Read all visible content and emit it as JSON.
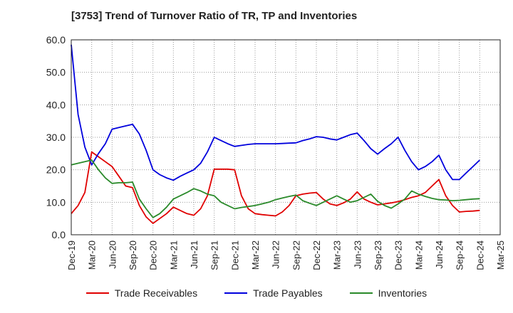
{
  "title": "[3753]  Trend of Turnover Ratio of TR, TP and Inventories",
  "chart_data": {
    "type": "line",
    "x_ticks": [
      "Dec-19",
      "Mar-20",
      "Jun-20",
      "Sep-20",
      "Dec-20",
      "Mar-21",
      "Jun-21",
      "Sep-21",
      "Dec-21",
      "Mar-22",
      "Jun-22",
      "Sep-22",
      "Dec-22",
      "Mar-23",
      "Jun-23",
      "Sep-23",
      "Dec-23",
      "Mar-24",
      "Jun-24",
      "Sep-24",
      "Dec-24",
      "Mar-25"
    ],
    "y_ticks": [
      "0.0",
      "10.0",
      "20.0",
      "30.0",
      "40.0",
      "50.0",
      "60.0"
    ],
    "ylim": [
      0,
      60
    ],
    "grid": "dotted",
    "legend_position": "bottom",
    "series": [
      {
        "name": "Trade Receivables",
        "color": "#e00000",
        "values": [
          6.5,
          9,
          13,
          25.5,
          24,
          22.5,
          21,
          18,
          15,
          14.5,
          9,
          5.5,
          3.5,
          5,
          6.5,
          8.5,
          7.5,
          6.5,
          6,
          8,
          12,
          20.2,
          20.2,
          20.2,
          20,
          12,
          8,
          6.5,
          6.2,
          6,
          5.8,
          7,
          9,
          12,
          12.5,
          12.8,
          13,
          11,
          9.5,
          9,
          9.8,
          11,
          13.2,
          11,
          10,
          9.2,
          9.5,
          9.8,
          10.2,
          10.8,
          11.5,
          12,
          13,
          15,
          17,
          12,
          9,
          7,
          7.2,
          7.3,
          7.5
        ]
      },
      {
        "name": "Trade Payables",
        "color": "#0000dd",
        "values": [
          58.5,
          37,
          27,
          21.5,
          25,
          28,
          32.5,
          33,
          33.5,
          34,
          31,
          26,
          20,
          18.5,
          17.5,
          16.8,
          18,
          19,
          20,
          22,
          25.5,
          30,
          29,
          28,
          27.2,
          27.5,
          27.8,
          28,
          28,
          28,
          28,
          28.1,
          28.2,
          28.3,
          29,
          29.5,
          30.2,
          30,
          29.5,
          29.2,
          30,
          30.8,
          31.3,
          29,
          26.5,
          24.8,
          26.5,
          28,
          30,
          26,
          22.5,
          20,
          21,
          22.5,
          24.5,
          20,
          17,
          17,
          19,
          21,
          23
        ]
      },
      {
        "name": "Inventories",
        "color": "#2a8a2a",
        "values": [
          21.5,
          22,
          22.5,
          23,
          20,
          17.5,
          15.8,
          16,
          16,
          16.2,
          11,
          8,
          5.3,
          6.5,
          8.5,
          11,
          12,
          13,
          14.2,
          13.5,
          12.5,
          12,
          10,
          9,
          8,
          8.4,
          8.7,
          9,
          9.5,
          10,
          10.8,
          11.3,
          11.8,
          12.2,
          10.5,
          9.7,
          9,
          10,
          11,
          12,
          11,
          10,
          10.5,
          11.5,
          12.5,
          10.3,
          9,
          8.2,
          9.5,
          11,
          13.5,
          12.5,
          11.8,
          11.2,
          10.8,
          10.7,
          10.5,
          10.6,
          10.8,
          11,
          11.1
        ]
      }
    ]
  }
}
